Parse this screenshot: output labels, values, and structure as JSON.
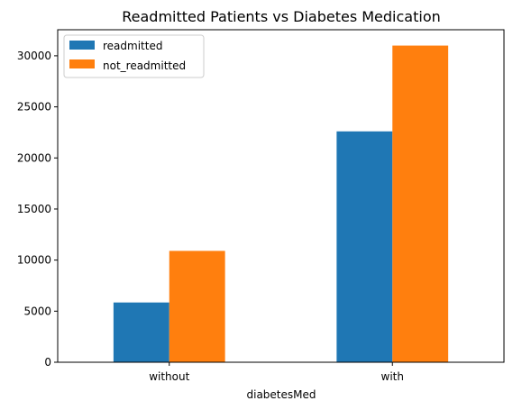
{
  "chart_data": {
    "type": "bar",
    "title": "Readmitted Patients vs Diabetes Medication",
    "xlabel": "diabetesMed",
    "ylabel": "",
    "categories": [
      "without",
      "with"
    ],
    "series": [
      {
        "name": "readmitted",
        "values": [
          5850,
          22600
        ],
        "color": "#1f77b4"
      },
      {
        "name": "not_readmitted",
        "values": [
          10900,
          31000
        ],
        "color": "#ff7f0e"
      }
    ],
    "ylim": [
      0,
      32550
    ],
    "yticks": [
      0,
      5000,
      10000,
      15000,
      20000,
      25000,
      30000
    ],
    "yticklabels": [
      "0",
      "5000",
      "10000",
      "15000",
      "20000",
      "25000",
      "30000"
    ],
    "grid": false,
    "legend_position": "top-left"
  }
}
